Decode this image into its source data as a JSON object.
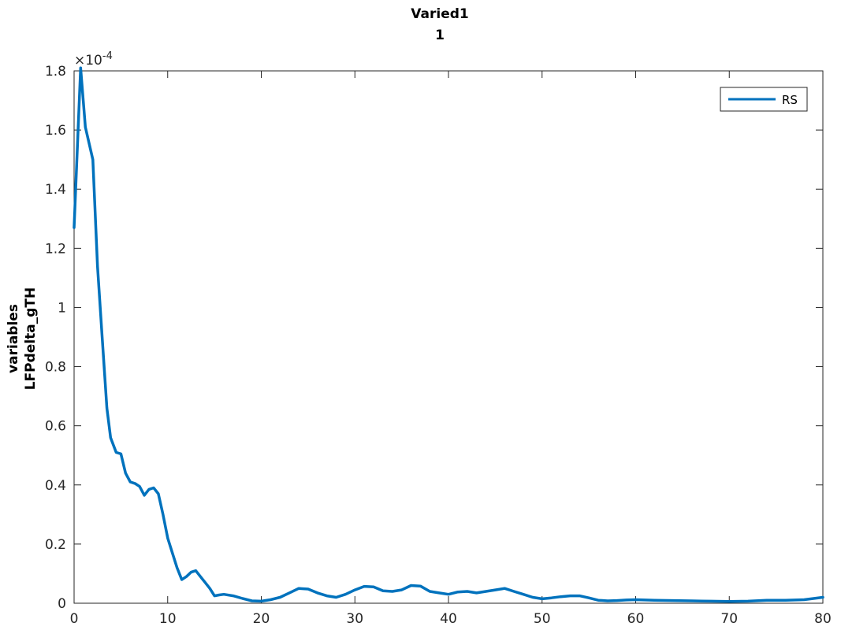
{
  "chart_data": {
    "type": "line",
    "title": [
      "Varied1",
      "1"
    ],
    "ylabel": [
      "variables",
      "LFPdelta_gTH"
    ],
    "xlabel": "",
    "xlim": [
      0,
      80
    ],
    "ylim": [
      0,
      1.8
    ],
    "y_exponent_label": "×10",
    "y_exponent_power": "-4",
    "x_ticks": [
      0,
      10,
      20,
      30,
      40,
      50,
      60,
      70,
      80
    ],
    "x_tick_labels": [
      "0",
      "10",
      "20",
      "30",
      "40",
      "50",
      "60",
      "70",
      "80"
    ],
    "y_ticks": [
      0,
      0.2,
      0.4,
      0.6,
      0.8,
      1.0,
      1.2,
      1.4,
      1.6,
      1.8
    ],
    "y_tick_labels": [
      "0",
      "0.2",
      "0.4",
      "0.6",
      "0.8",
      "1",
      "1.2",
      "1.4",
      "1.6",
      "1.8"
    ],
    "grid": false,
    "legend_position": "top-right",
    "series": [
      {
        "name": "RS",
        "color": "#0072bd",
        "x": [
          0,
          0.7,
          1.2,
          2.0,
          2.5,
          3.0,
          3.5,
          3.9,
          4.5,
          5.0,
          5.5,
          6.0,
          6.5,
          7.0,
          7.5,
          8.0,
          8.5,
          9.0,
          9.5,
          10.0,
          10.5,
          11.0,
          11.5,
          12.0,
          12.5,
          13.0,
          13.5,
          14.0,
          14.5,
          15.0,
          15.5,
          16.0,
          17.0,
          18.0,
          19.0,
          20.0,
          21.0,
          22.0,
          23.0,
          24.0,
          25.0,
          26.0,
          27.0,
          28.0,
          29.0,
          30.0,
          31.0,
          32.0,
          33.0,
          34.0,
          35.0,
          36.0,
          37.0,
          38.0,
          39.0,
          40.0,
          41.0,
          42.0,
          43.0,
          44.0,
          45.0,
          46.0,
          47.0,
          48.0,
          49.0,
          50.0,
          51.0,
          52.0,
          53.0,
          54.0,
          55.0,
          56.0,
          57.0,
          58.0,
          59.0,
          60.0,
          62.0,
          64.0,
          66.0,
          68.0,
          70.0,
          72.0,
          74.0,
          76.0,
          78.0,
          80.0
        ],
        "y": [
          1.27,
          1.81,
          1.61,
          1.5,
          1.14,
          0.9,
          0.66,
          0.56,
          0.51,
          0.505,
          0.44,
          0.41,
          0.405,
          0.395,
          0.365,
          0.385,
          0.39,
          0.37,
          0.3,
          0.22,
          0.17,
          0.12,
          0.08,
          0.09,
          0.105,
          0.11,
          0.09,
          0.07,
          0.05,
          0.025,
          0.028,
          0.03,
          0.025,
          0.016,
          0.008,
          0.007,
          0.012,
          0.02,
          0.035,
          0.05,
          0.048,
          0.035,
          0.025,
          0.02,
          0.03,
          0.045,
          0.057,
          0.055,
          0.042,
          0.04,
          0.045,
          0.06,
          0.058,
          0.04,
          0.035,
          0.03,
          0.038,
          0.04,
          0.035,
          0.04,
          0.045,
          0.05,
          0.04,
          0.03,
          0.02,
          0.015,
          0.018,
          0.022,
          0.025,
          0.025,
          0.018,
          0.01,
          0.008,
          0.009,
          0.011,
          0.012,
          0.01,
          0.009,
          0.008,
          0.007,
          0.006,
          0.007,
          0.01,
          0.01,
          0.012,
          0.02
        ]
      }
    ]
  }
}
